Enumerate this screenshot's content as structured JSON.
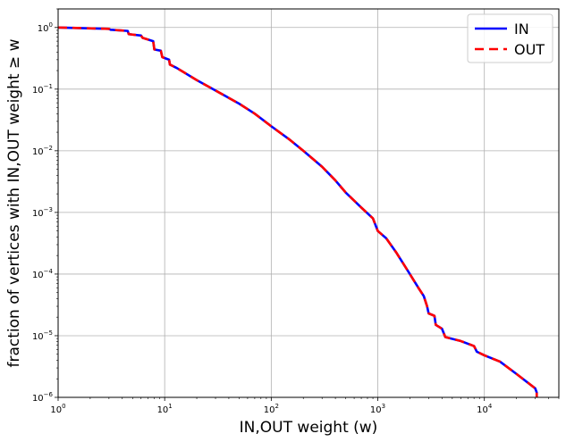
{
  "chart_data": {
    "type": "line",
    "xscale": "log",
    "yscale": "log",
    "xlim": [
      1,
      50000
    ],
    "ylim": [
      1e-06,
      2
    ],
    "xlabel": "IN,OUT weight (w)",
    "ylabel": "fraction of vertices with IN,OUT weight ≥ w",
    "grid": true,
    "legend_position": "top-right",
    "x_ticks": [
      {
        "value": 1,
        "base": "10",
        "exp": "0"
      },
      {
        "value": 10,
        "base": "10",
        "exp": "1"
      },
      {
        "value": 100,
        "base": "10",
        "exp": "2"
      },
      {
        "value": 1000,
        "base": "10",
        "exp": "3"
      },
      {
        "value": 10000,
        "base": "10",
        "exp": "4"
      }
    ],
    "y_ticks": [
      {
        "value": 1,
        "base": "10",
        "exp": "0"
      },
      {
        "value": 0.1,
        "base": "10",
        "exp": "−1"
      },
      {
        "value": 0.01,
        "base": "10",
        "exp": "−2"
      },
      {
        "value": 0.001,
        "base": "10",
        "exp": "−3"
      },
      {
        "value": 0.0001,
        "base": "10",
        "exp": "−4"
      },
      {
        "value": 1e-05,
        "base": "10",
        "exp": "−5"
      },
      {
        "value": 1e-06,
        "base": "10",
        "exp": "−6"
      }
    ],
    "series": [
      {
        "name": "IN",
        "color": "#0000ff",
        "dash": "solid",
        "points": [
          [
            1,
            1.0
          ],
          [
            3,
            0.95
          ],
          [
            3.1,
            0.92
          ],
          [
            4.5,
            0.88
          ],
          [
            4.6,
            0.78
          ],
          [
            6,
            0.74
          ],
          [
            6.2,
            0.68
          ],
          [
            7.8,
            0.6
          ],
          [
            8,
            0.44
          ],
          [
            9.2,
            0.42
          ],
          [
            9.5,
            0.33
          ],
          [
            11,
            0.3
          ],
          [
            11.2,
            0.25
          ],
          [
            13,
            0.22
          ],
          [
            20,
            0.14
          ],
          [
            30,
            0.095
          ],
          [
            50,
            0.058
          ],
          [
            70,
            0.04
          ],
          [
            100,
            0.025
          ],
          [
            150,
            0.015
          ],
          [
            200,
            0.01
          ],
          [
            300,
            0.0055
          ],
          [
            400,
            0.0033
          ],
          [
            500,
            0.0021
          ],
          [
            700,
            0.0012
          ],
          [
            900,
            0.0008
          ],
          [
            1000,
            0.0005
          ],
          [
            1200,
            0.00038
          ],
          [
            1500,
            0.00022
          ],
          [
            2000,
            0.0001
          ],
          [
            2400,
            6e-05
          ],
          [
            2700,
            4.4e-05
          ],
          [
            2900,
            3e-05
          ],
          [
            3000,
            2.3e-05
          ],
          [
            3400,
            2.1e-05
          ],
          [
            3500,
            1.5e-05
          ],
          [
            4000,
            1.3e-05
          ],
          [
            4300,
            9.5e-06
          ],
          [
            6000,
            8.2e-06
          ],
          [
            8000,
            6.8e-06
          ],
          [
            8500,
            5.5e-06
          ],
          [
            10000,
            4.8e-06
          ],
          [
            14000,
            3.8e-06
          ],
          [
            20000,
            2.4e-06
          ],
          [
            30000,
            1.4e-06
          ],
          [
            31000,
            1.2e-06
          ],
          [
            31000,
            1e-06
          ]
        ]
      },
      {
        "name": "OUT",
        "color": "#ff0000",
        "dash": "dashed",
        "points": [
          [
            1,
            1.0
          ],
          [
            3,
            0.95
          ],
          [
            3.1,
            0.92
          ],
          [
            4.5,
            0.88
          ],
          [
            4.6,
            0.78
          ],
          [
            6,
            0.74
          ],
          [
            6.2,
            0.68
          ],
          [
            7.8,
            0.6
          ],
          [
            8,
            0.44
          ],
          [
            9.2,
            0.42
          ],
          [
            9.5,
            0.33
          ],
          [
            11,
            0.3
          ],
          [
            11.2,
            0.25
          ],
          [
            13,
            0.22
          ],
          [
            20,
            0.14
          ],
          [
            30,
            0.095
          ],
          [
            50,
            0.058
          ],
          [
            70,
            0.04
          ],
          [
            100,
            0.025
          ],
          [
            150,
            0.015
          ],
          [
            200,
            0.01
          ],
          [
            300,
            0.0055
          ],
          [
            400,
            0.0033
          ],
          [
            500,
            0.0021
          ],
          [
            700,
            0.0012
          ],
          [
            900,
            0.0008
          ],
          [
            1000,
            0.0005
          ],
          [
            1200,
            0.00038
          ],
          [
            1500,
            0.00022
          ],
          [
            2000,
            0.0001
          ],
          [
            2400,
            6e-05
          ],
          [
            2700,
            4.4e-05
          ],
          [
            2900,
            3e-05
          ],
          [
            3000,
            2.3e-05
          ],
          [
            3400,
            2.1e-05
          ],
          [
            3500,
            1.5e-05
          ],
          [
            4000,
            1.3e-05
          ],
          [
            4300,
            9.5e-06
          ],
          [
            6000,
            8.2e-06
          ],
          [
            8000,
            6.8e-06
          ],
          [
            8500,
            5.5e-06
          ],
          [
            10000,
            4.8e-06
          ],
          [
            14000,
            3.8e-06
          ],
          [
            20000,
            2.4e-06
          ],
          [
            30000,
            1.4e-06
          ],
          [
            31000,
            1.2e-06
          ],
          [
            31000,
            1e-06
          ]
        ]
      }
    ]
  }
}
